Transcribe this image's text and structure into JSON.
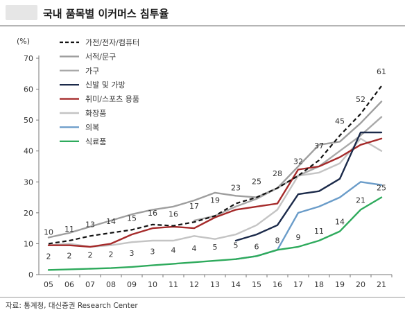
{
  "header": {
    "title": "국내 품목별 이커머스 침투율"
  },
  "footer": {
    "source": "자료: 통계청, 대신증권 Research Center"
  },
  "chart_data": {
    "type": "line",
    "title": "국내 품목별 이커머스 침투율",
    "ylabel": "(%)",
    "xlabel": "",
    "categories": [
      "05",
      "06",
      "07",
      "08",
      "09",
      "10",
      "11",
      "12",
      "13",
      "14",
      "15",
      "16",
      "17",
      "18",
      "19",
      "20",
      "21"
    ],
    "ylim": [
      0,
      70
    ],
    "yticks": [
      0,
      10,
      20,
      30,
      40,
      50,
      60,
      70
    ],
    "grid": false,
    "legend_position": "top-left",
    "series": [
      {
        "name": "가전/전자/컴퓨터",
        "color": "#111111",
        "style": "dashed",
        "values": [
          10,
          11,
          12.5,
          13.5,
          14.5,
          16.2,
          15.8,
          17,
          19,
          23,
          25,
          28,
          32,
          37,
          45,
          52,
          61
        ],
        "labels": [
          "10",
          "11",
          "13",
          "14",
          "15",
          "16",
          "16",
          "17",
          "19",
          "23",
          "25",
          "28",
          "32",
          "37",
          "45",
          "52",
          "61"
        ]
      },
      {
        "name": "서적/문구",
        "color": "#9e9e9e",
        "style": "solid",
        "values": [
          12,
          13.5,
          15.5,
          17.5,
          19.5,
          21,
          22,
          24,
          26.5,
          25.5,
          25,
          28,
          35,
          42,
          43,
          49,
          56
        ]
      },
      {
        "name": "가구",
        "color": "#a9a9a9",
        "style": "solid",
        "values": [
          null,
          null,
          null,
          null,
          null,
          null,
          null,
          17.5,
          19,
          22,
          24.5,
          28,
          32,
          35,
          40,
          45,
          51
        ]
      },
      {
        "name": "신발 및 가방",
        "color": "#1b2a4a",
        "style": "solid",
        "values": [
          null,
          null,
          null,
          null,
          null,
          null,
          null,
          null,
          null,
          11,
          13,
          16,
          26,
          27,
          31,
          46,
          46
        ]
      },
      {
        "name": "취미/스포츠 용품",
        "color": "#a52a2a",
        "style": "solid",
        "values": [
          9.5,
          9.5,
          9,
          10,
          13,
          15,
          15.5,
          15,
          18.5,
          21,
          22,
          23,
          34,
          35,
          38,
          42,
          44
        ]
      },
      {
        "name": "화장품",
        "color": "#c4c4c4",
        "style": "solid",
        "values": [
          9.5,
          10,
          9,
          9.5,
          10.5,
          11,
          11,
          12.5,
          11.5,
          13,
          16,
          21,
          32,
          33,
          36,
          44,
          40
        ]
      },
      {
        "name": "의복",
        "color": "#6a9cc9",
        "style": "solid",
        "values": [
          null,
          null,
          null,
          null,
          null,
          null,
          null,
          null,
          null,
          5,
          6,
          8,
          20,
          22,
          25,
          30,
          29
        ]
      },
      {
        "name": "식료품",
        "color": "#2eaa5c",
        "style": "solid",
        "values": [
          1.5,
          1.7,
          1.9,
          2.1,
          2.5,
          3,
          3.5,
          4,
          4.5,
          5,
          6,
          8,
          9,
          11,
          14,
          21,
          25
        ],
        "labels": [
          "2",
          "2",
          "2",
          "2",
          "3",
          "3",
          "4",
          "4",
          "5",
          "5",
          "6",
          "8",
          "9",
          "11",
          "14",
          "21",
          "25"
        ]
      }
    ]
  }
}
